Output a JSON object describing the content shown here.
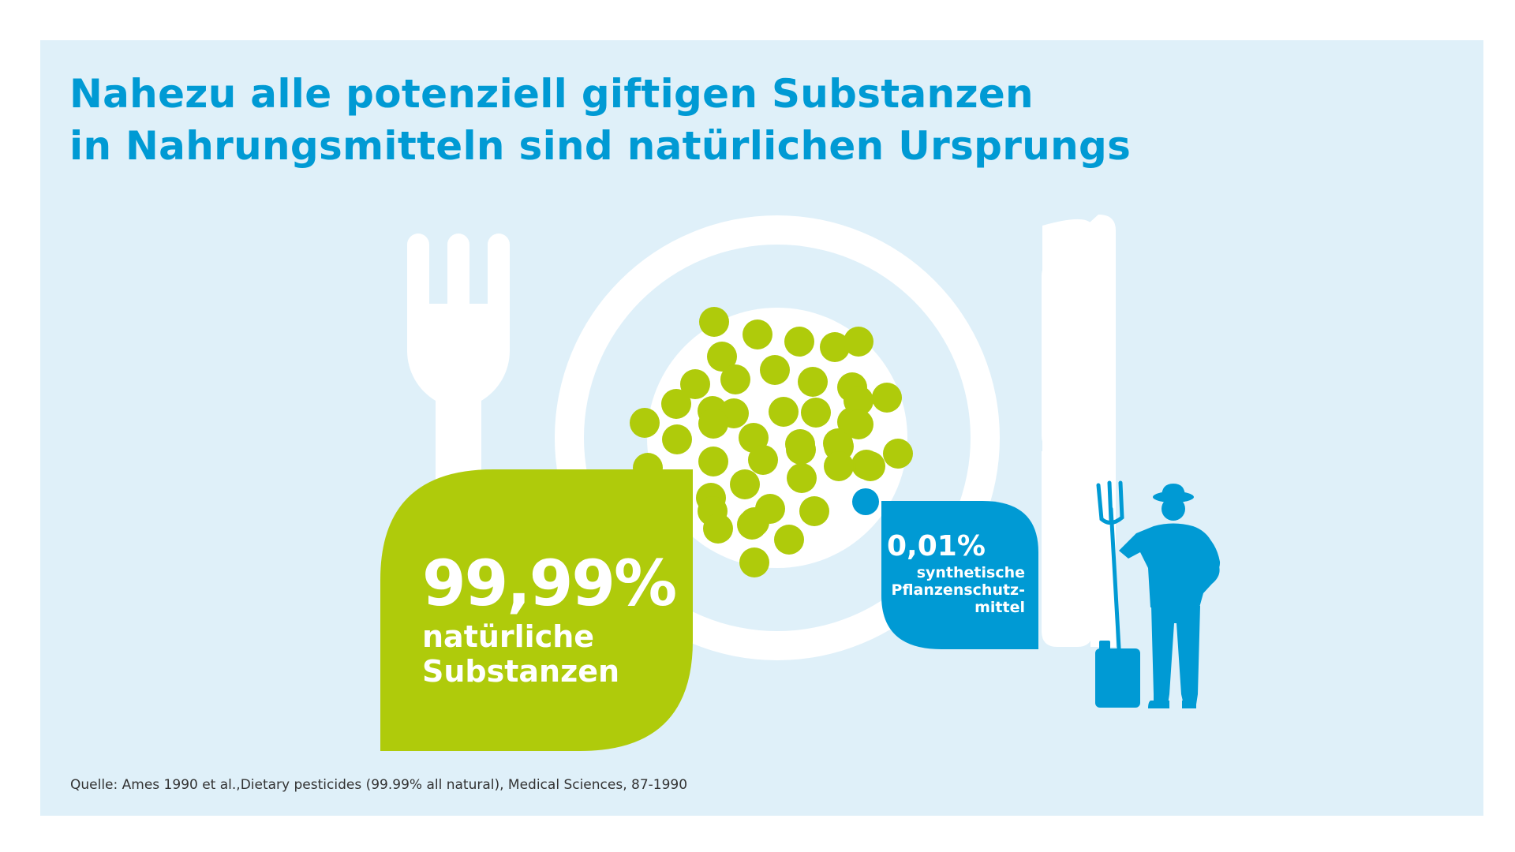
{
  "headline": {
    "line1": "Nahezu alle potenziell giftigen Substanzen",
    "line2": "in Nahrungsmitteln sind natürlichen Ursprungs"
  },
  "natural": {
    "value_text": "99,99%",
    "label_line1": "natürliche",
    "label_line2": "Substanzen",
    "share_percent": 99.99,
    "color": "#afcb0b"
  },
  "synthetic": {
    "value_text": "0,01%",
    "label_line1": "synthetische",
    "label_line2": "Pflanzenschutz-",
    "label_line3": "mittel",
    "share_percent": 0.01,
    "color": "#009ad4"
  },
  "source": "Quelle: Ames 1990 et al.,Dietary pesticides (99.99% all natural), Medical Sciences, 87-1990",
  "colors": {
    "background": "#dff0f9",
    "headline": "#009ad4",
    "cutlery": "#ffffff",
    "pea": "#afcb0b"
  },
  "icons": [
    "fork-icon",
    "plate-icon",
    "knife-icon",
    "peas-icon",
    "farmer-icon",
    "pitchfork-icon",
    "canister-icon"
  ]
}
